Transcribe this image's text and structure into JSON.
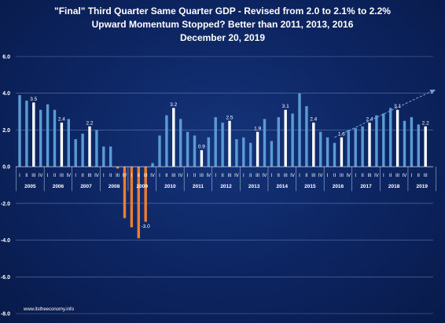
{
  "chart_data": {
    "type": "bar",
    "title_lines": [
      "\"Final\" Third Quarter Same Quarter GDP - Revised from 2.0 to 2.1% to 2.2%",
      "Upward Momentum Stopped?  Better than 2011, 2013, 2016",
      "December 20, 2019"
    ],
    "xlabel": "",
    "ylabel": "",
    "ylim": [
      -8.0,
      6.0
    ],
    "yticks": [
      "6.0",
      "4.0",
      "2.0",
      "0.0",
      "-2.0",
      "-4.0",
      "-6.0",
      "-8.0"
    ],
    "ytick_values": [
      6,
      4,
      2,
      0,
      -2,
      -4,
      -6,
      -8
    ],
    "quarter_labels": [
      "I",
      "II",
      "III",
      "IV"
    ],
    "years": [
      "2005",
      "2006",
      "2007",
      "2008",
      "2009",
      "2010",
      "2011",
      "2012",
      "2013",
      "2014",
      "2015",
      "2016",
      "2017",
      "2018",
      "2019"
    ],
    "values": [
      3.9,
      3.6,
      3.5,
      3.1,
      3.4,
      3.1,
      2.4,
      2.6,
      1.5,
      1.8,
      2.2,
      2.0,
      1.1,
      1.1,
      -0.1,
      -2.8,
      -3.3,
      -3.9,
      -3.0,
      0.2,
      1.7,
      2.8,
      3.2,
      2.6,
      1.9,
      1.7,
      0.9,
      1.6,
      2.7,
      2.4,
      2.5,
      1.5,
      1.6,
      1.3,
      1.9,
      2.6,
      1.4,
      2.7,
      3.1,
      2.9,
      4.0,
      3.3,
      2.4,
      1.9,
      1.6,
      1.3,
      1.6,
      2.0,
      2.1,
      2.2,
      2.4,
      2.8,
      2.9,
      3.2,
      3.1,
      2.5,
      2.7,
      2.3,
      2.2
    ],
    "highlighted_quarter": "III",
    "data_labels": [
      {
        "year": "2005",
        "quarter": "III",
        "text": "3.5"
      },
      {
        "year": "2006",
        "quarter": "III",
        "text": "2.4"
      },
      {
        "year": "2007",
        "quarter": "III",
        "text": "2.2"
      },
      {
        "year": "2009",
        "quarter": "III",
        "text": "-3.0"
      },
      {
        "year": "2010",
        "quarter": "III",
        "text": "3.2"
      },
      {
        "year": "2011",
        "quarter": "III",
        "text": "0.9"
      },
      {
        "year": "2012",
        "quarter": "III",
        "text": "2.5"
      },
      {
        "year": "2013",
        "quarter": "III",
        "text": "1.9"
      },
      {
        "year": "2014",
        "quarter": "III",
        "text": "3.1"
      },
      {
        "year": "2015",
        "quarter": "III",
        "text": "2.4"
      },
      {
        "year": "2016",
        "quarter": "III",
        "text": "1.6"
      },
      {
        "year": "2017",
        "quarter": "III",
        "text": "2.4"
      },
      {
        "year": "2018",
        "quarter": "III",
        "text": "3.1"
      },
      {
        "year": "2019",
        "quarter": "III",
        "text": "2.2"
      }
    ],
    "trend_arrow": {
      "from": {
        "year": "2016",
        "quarter": "II",
        "value": 1.6
      },
      "to": {
        "year": "2019",
        "quarter": "IV",
        "value": 4.2
      }
    },
    "grid": true,
    "colors": {
      "background": "#0c2460",
      "positive_bar": "#5b9bd5",
      "third_quarter_bar": "#ffffff",
      "negative_bar": "#ed7d31",
      "gridline": "#5f78b0",
      "trend_arrow": "#6f9fd8",
      "text": "#ffffff"
    }
  },
  "footer": "www.itstheeconomy.info"
}
